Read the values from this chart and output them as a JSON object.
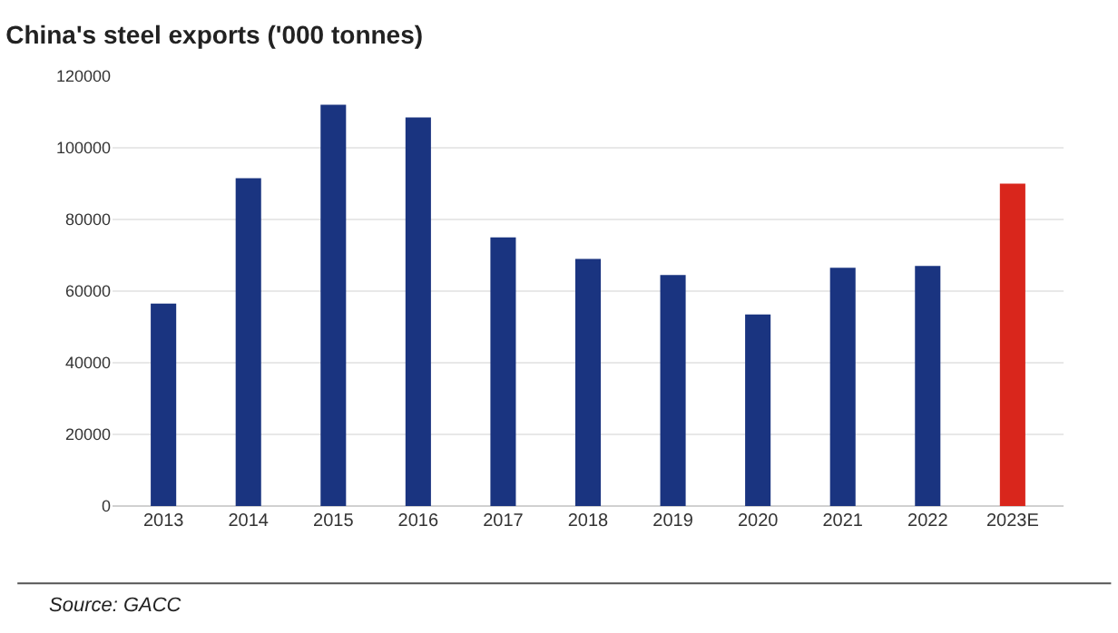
{
  "chart_data": {
    "type": "bar",
    "title": "China's steel exports ('000 tonnes)",
    "categories": [
      "2013",
      "2014",
      "2015",
      "2016",
      "2017",
      "2018",
      "2019",
      "2020",
      "2021",
      "2022",
      "2023E"
    ],
    "values": [
      56500,
      91500,
      112000,
      108500,
      75000,
      69000,
      64500,
      53500,
      66500,
      67000,
      90000
    ],
    "colors": [
      "#1a3480",
      "#1a3480",
      "#1a3480",
      "#1a3480",
      "#1a3480",
      "#1a3480",
      "#1a3480",
      "#1a3480",
      "#1a3480",
      "#1a3480",
      "#d9261c"
    ],
    "ylim": [
      0,
      120000
    ],
    "yticks": [
      0,
      20000,
      40000,
      60000,
      80000,
      100000,
      120000
    ],
    "grid": "y",
    "annotations": [
      "Source: GACC"
    ]
  }
}
